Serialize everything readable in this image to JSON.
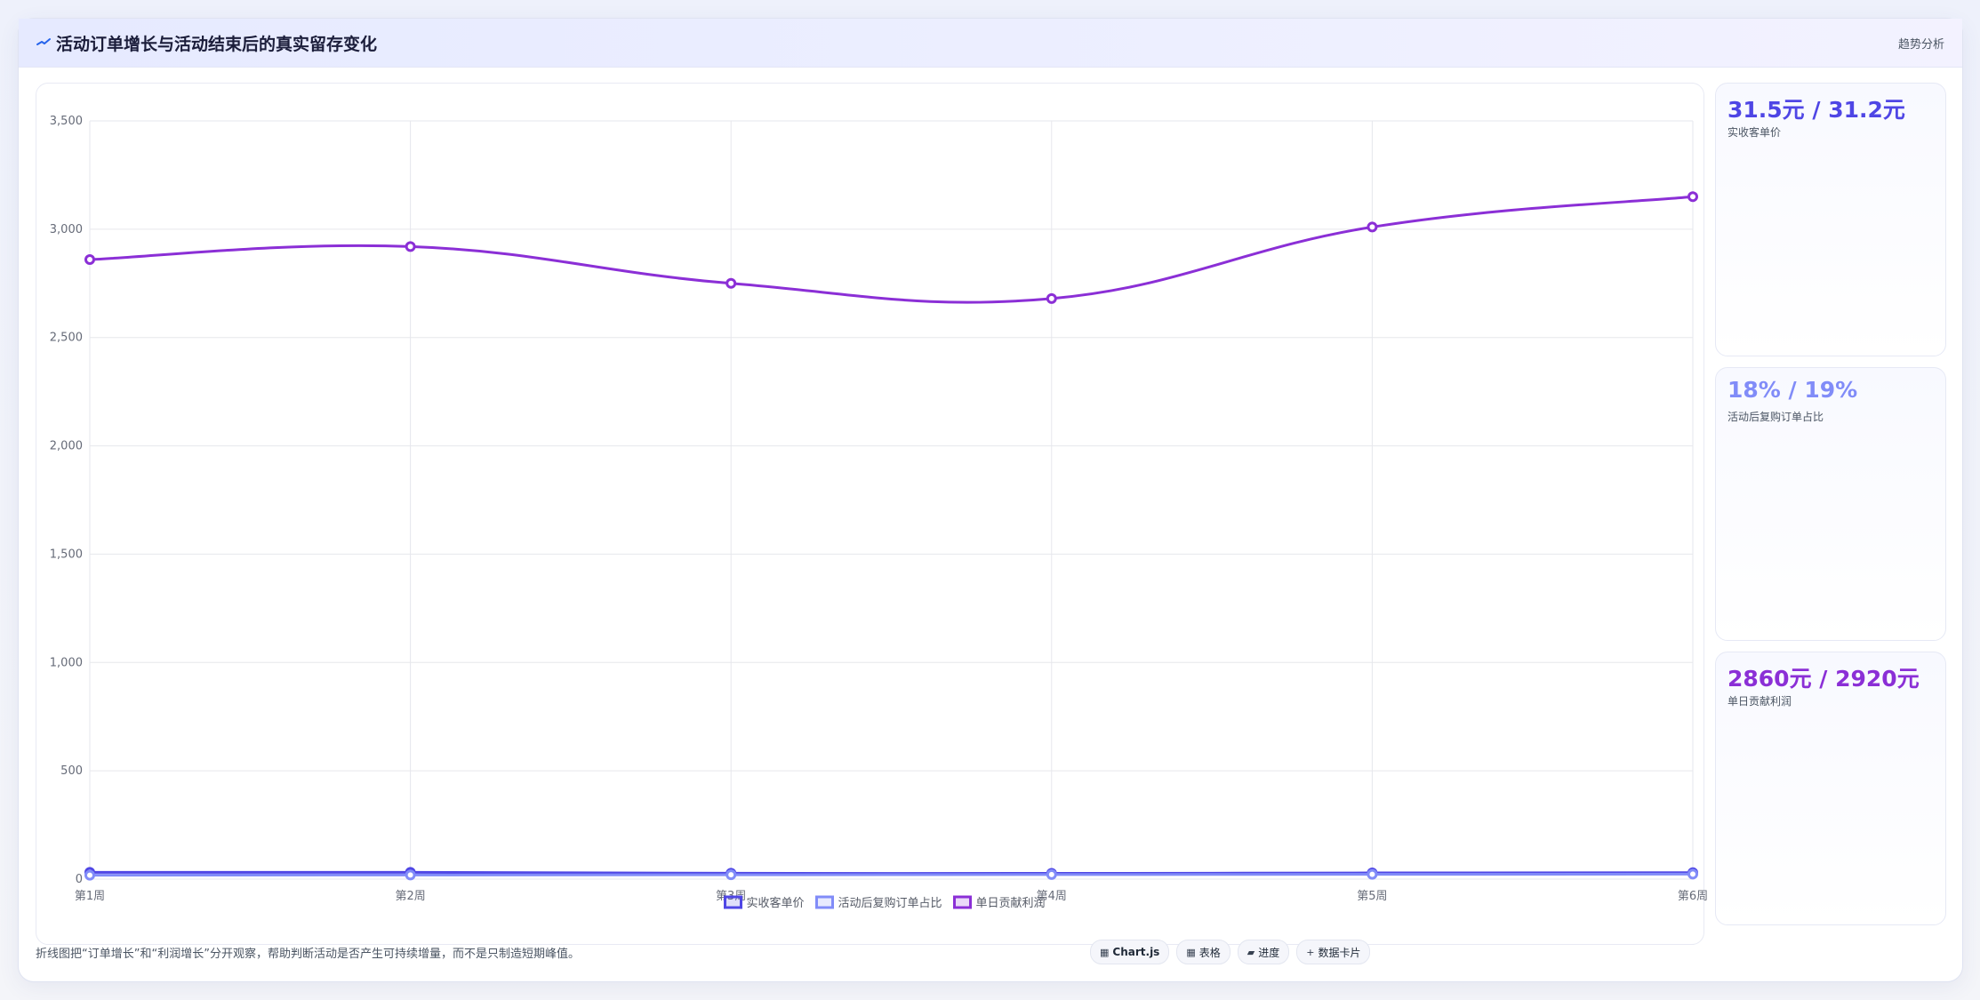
{
  "header": {
    "title": "活动订单增长与活动结束后的真实留存变化",
    "title_icon": "trend-line-icon",
    "link": "趋势分析"
  },
  "chart_data": {
    "type": "line",
    "categories": [
      "第1周",
      "第2周",
      "第3周",
      "第4周",
      "第5周",
      "第6周"
    ],
    "series": [
      {
        "name": "实收客单价",
        "values": [
          31.5,
          31.2,
          27.0,
          26.5,
          28.5,
          30.0
        ],
        "color": "#4f46e5"
      },
      {
        "name": "活动后复购订单占比",
        "values": [
          18,
          19,
          20,
          21,
          22,
          23
        ],
        "color": "#818cf8"
      },
      {
        "name": "单日贡献利润",
        "values": [
          2860,
          2920,
          2750,
          2680,
          3010,
          3150
        ],
        "color": "#8b2fd6"
      }
    ],
    "ylim": [
      0,
      3500
    ],
    "yticks": [
      "0",
      "500",
      "1,000",
      "1,500",
      "2,000",
      "2,500",
      "3,000",
      "3,500"
    ],
    "grid": true,
    "legend": "bottom-center"
  },
  "cards": [
    {
      "value": "31.5元 / 31.2元",
      "label": "实收客单价",
      "color": "#4f46e5"
    },
    {
      "value": "18% / 19%",
      "label": "活动后复购订单占比",
      "color": "#818cf8"
    },
    {
      "value": "2860元 / 2920元",
      "label": "单日贡献利润",
      "color": "#8b2fd6"
    }
  ],
  "footnote": "折线图把“订单增长”和“利润增长”分开观察，帮助判断活动是否产生可持续增量，而不是只制造短期峰值。",
  "chips": [
    {
      "icon": "▦",
      "icon_name": "chart-icon",
      "label": "Chart.js"
    },
    {
      "icon": "▦",
      "icon_name": "table-icon",
      "label": "表格"
    },
    {
      "icon": "▰",
      "icon_name": "progress-icon",
      "label": "进度"
    },
    {
      "icon": "+",
      "icon_name": "data-card-icon",
      "label": "数据卡片"
    }
  ]
}
